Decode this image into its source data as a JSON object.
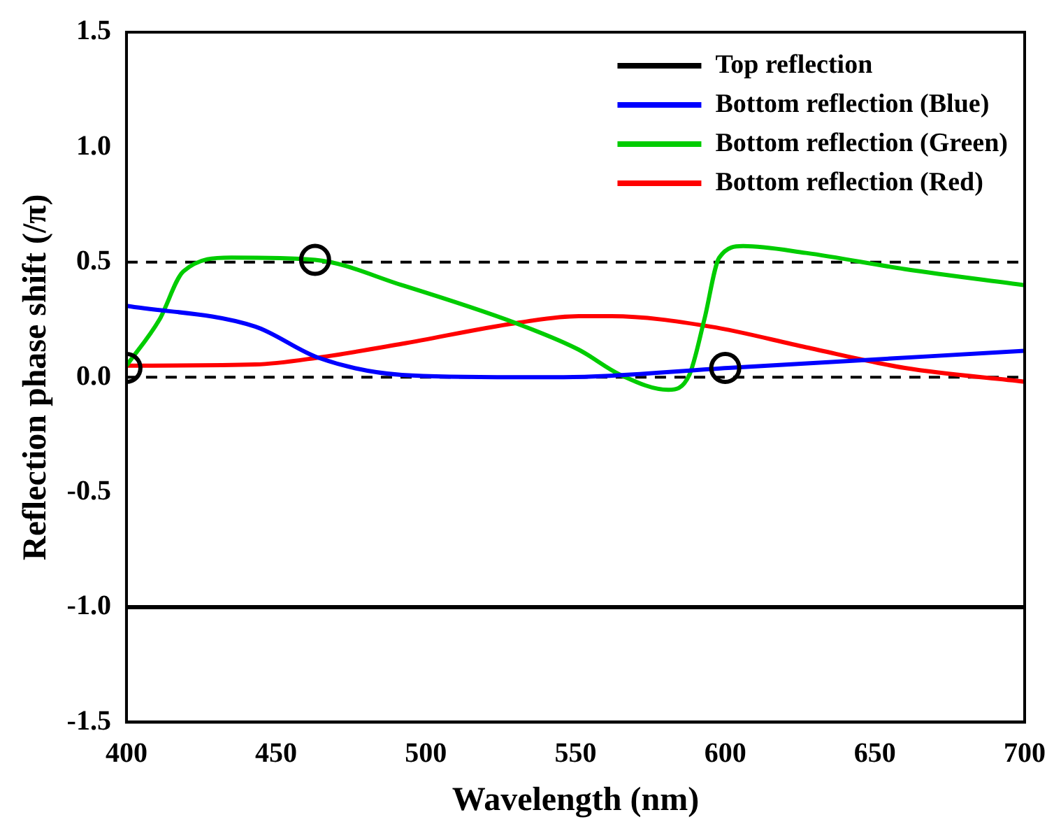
{
  "chart_data": {
    "type": "line",
    "xlabel": "Wavelength (nm)",
    "ylabel": "Reflection phase shift (/π)",
    "xlim": [
      400,
      700
    ],
    "xticks": [
      400,
      450,
      500,
      550,
      600,
      650,
      700
    ],
    "ylim": [
      -1.5,
      1.5
    ],
    "yticks": [
      {
        "value": -1.5,
        "label": "-1.5"
      },
      {
        "value": -1,
        "label": "-1.0"
      },
      {
        "value": -0.5,
        "label": "-0.5"
      },
      {
        "value": 0,
        "label": "0.0"
      },
      0.5,
      {
        "value": 1,
        "label": "1.0"
      },
      1.5
    ],
    "grid": false,
    "legend": "top right",
    "line_style": "solid",
    "series": [
      {
        "name": "Top reflection",
        "color": "#000000",
        "x": [
          400,
          700
        ],
        "values": [
          -1,
          -1
        ]
      },
      {
        "name": "Bottom reflection (Blue)",
        "color": "#0000ff",
        "x": [
          400,
          443,
          464,
          492,
          530,
          546,
          601,
          700
        ],
        "values": [
          0.31,
          0.22,
          0.085,
          0.01,
          0,
          0,
          0.04,
          0.115
        ]
      },
      {
        "name": "Bottom reflection (Green)",
        "color": "#00cc00",
        "x": [
          400,
          411,
          419,
          435,
          463,
          492,
          530,
          551,
          565,
          581,
          588,
          593,
          598,
          606,
          627,
          660,
          700
        ],
        "values": [
          0.05,
          0.25,
          0.46,
          0.52,
          0.51,
          0.4,
          0.235,
          0.12,
          0.01,
          -0.055,
          0.01,
          0.25,
          0.52,
          0.57,
          0.54,
          0.47,
          0.4
        ]
      },
      {
        "name": "Bottom reflection (Red)",
        "color": "#ff0000",
        "x": [
          400,
          443,
          464,
          492,
          530,
          551,
          562,
          595,
          627,
          660,
          700
        ],
        "values": [
          0.05,
          0.055,
          0.085,
          0.145,
          0.235,
          0.265,
          0.265,
          0.22,
          0.13,
          0.04,
          -0.02
        ]
      },
      {
        "type": "scatter",
        "marker": "circle",
        "color": "#000000",
        "x": [
          400,
          463,
          600
        ],
        "values": [
          0.04,
          0.51,
          0.04
        ]
      }
    ],
    "ref_lines": [
      {
        "axis": "y",
        "value": 0,
        "color": "#000000",
        "line_style": "dashed"
      },
      {
        "axis": "y",
        "value": 0.5,
        "color": "#000000",
        "line_style": "dashed"
      }
    ]
  }
}
